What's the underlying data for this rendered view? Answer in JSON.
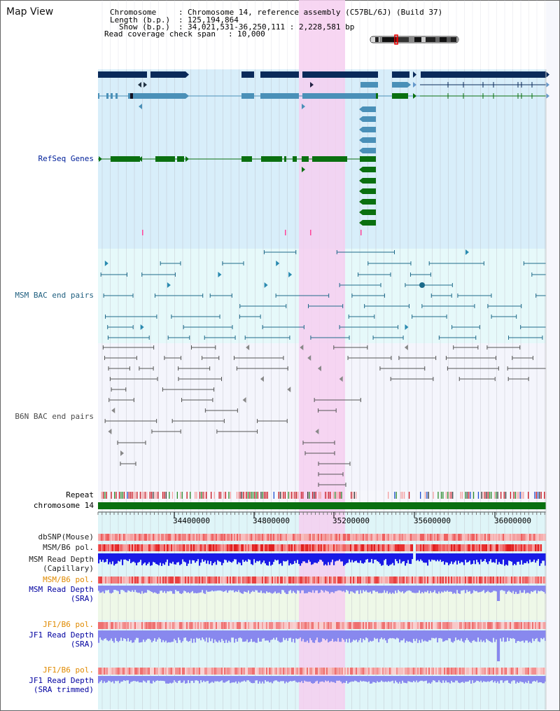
{
  "view": {
    "title": "Map View"
  },
  "info": {
    "chromosome_key": "Chromosome",
    "chromosome_val": "Chromosome 14, reference assembly (C57BL/6J) (Build 37)",
    "length_key": "Length (b.p.)",
    "length_val": "125,194,864",
    "show_key": "Show (b.p.)",
    "show_val": "34,021,531-36,250,111 : 2,228,581 bp",
    "coverage_key": "Read coverage check span",
    "coverage_val": "10,000"
  },
  "tracks": {
    "refseq": "RefSeq Genes",
    "msm_bac": "MSM BAC end pairs",
    "b6n_bac": "B6N BAC end pairs",
    "repeat": "Repeat",
    "chromosome": "chromosome 14",
    "dbsnp": "dbSNP(Mouse)",
    "msm_b6_pol_1": "MSM/B6 pol.",
    "msm_read_depth_cap_1": "MSM Read Depth",
    "msm_read_depth_cap_2": "(Capillary)",
    "msm_b6_pol_2": "MSM/B6 pol.",
    "msm_read_depth_sra_1": "MSM Read Depth",
    "msm_read_depth_sra_2": "(SRA)",
    "jf1_b6_pol_1": "JF1/B6 pol.",
    "jf1_read_depth_sra_1": "JF1 Read Depth",
    "jf1_read_depth_sra_2": "(SRA)",
    "jf1_b6_pol_2": "JF1/B6 pol.",
    "jf1_read_depth_trim_1": "JF1 Read Depth",
    "jf1_read_depth_trim_2": "(SRA trimmed)"
  },
  "axis": {
    "ticks": [
      "34400000",
      "34800000",
      "35200000",
      "35600000",
      "36000000"
    ]
  },
  "colors": {
    "refseq_label": "#00209a",
    "msm_bac_label": "#1f5f7f",
    "b6n_bac_label": "#4a4a4a",
    "orange_label": "#e08a00",
    "blue_label": "#0000a0",
    "highlight": "#f6cff0",
    "gene_dark": "#0a2a5a",
    "gene_mid": "#4a90b8",
    "gene_green": "#0a7010",
    "chrom_green": "#0a7010",
    "depth_blue": "#1a1ae6",
    "depth_light": "#8888ee"
  }
}
